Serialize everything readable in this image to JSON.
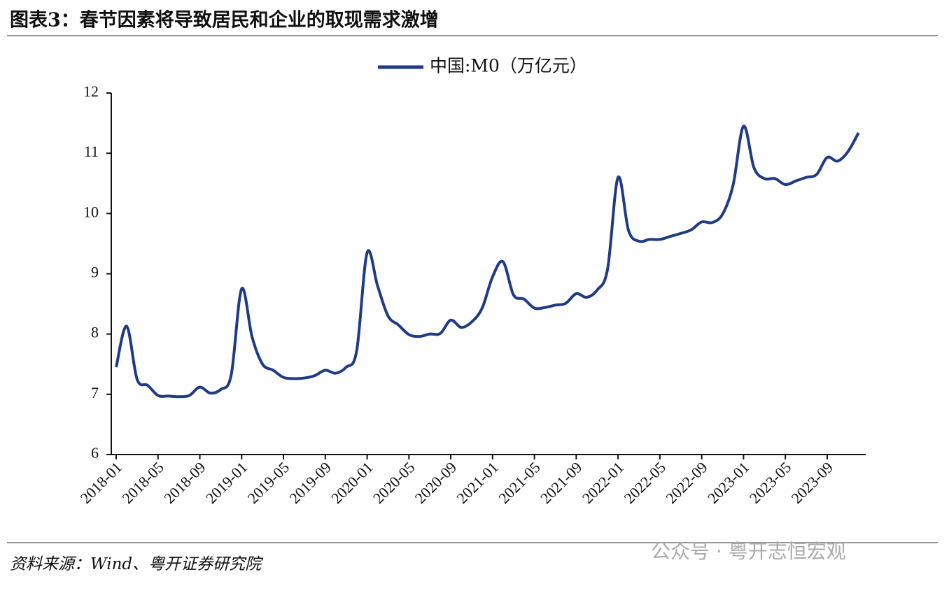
{
  "chart_data": {
    "type": "line",
    "title": "图表3：春节因素将导致居民和企业的取现需求激增",
    "source": "资料来源：Wind、粤开证券研究院",
    "watermark": "公众号 · 粤开志恒宏观",
    "categories": [
      "2018-01",
      null,
      null,
      null,
      "2018-05",
      null,
      null,
      null,
      "2018-09",
      null,
      null,
      null,
      "2019-01",
      null,
      null,
      null,
      "2019-05",
      null,
      null,
      null,
      "2019-09",
      null,
      null,
      null,
      "2020-01",
      null,
      null,
      null,
      "2020-05",
      null,
      null,
      null,
      "2020-09",
      null,
      null,
      null,
      "2021-01",
      null,
      null,
      null,
      "2021-05",
      null,
      null,
      null,
      "2021-09",
      null,
      null,
      null,
      "2022-01",
      null,
      null,
      null,
      "2022-05",
      null,
      null,
      null,
      "2022-09",
      null,
      null,
      null,
      "2023-01",
      null,
      null,
      null,
      "2023-05",
      null,
      null,
      null,
      "2023-09",
      null,
      null,
      null
    ],
    "series": [
      {
        "name": "中国:M0（万亿元）",
        "color": "#1f3b85",
        "values": [
          7.45,
          8.13,
          7.25,
          7.15,
          6.98,
          6.97,
          6.96,
          6.98,
          7.12,
          7.02,
          7.08,
          7.32,
          8.75,
          7.95,
          7.5,
          7.4,
          7.28,
          7.26,
          7.27,
          7.31,
          7.4,
          7.35,
          7.45,
          7.72,
          9.35,
          8.8,
          8.3,
          8.15,
          7.99,
          7.96,
          8.0,
          8.01,
          8.23,
          8.11,
          8.2,
          8.43,
          8.95,
          9.2,
          8.65,
          8.58,
          8.43,
          8.44,
          8.48,
          8.51,
          8.67,
          8.61,
          8.73,
          9.08,
          10.6,
          9.72,
          9.54,
          9.57,
          9.57,
          9.62,
          9.67,
          9.73,
          9.86,
          9.85,
          9.99,
          10.47,
          11.45,
          10.76,
          10.58,
          10.58,
          10.48,
          10.54,
          10.6,
          10.65,
          10.93,
          10.87,
          11.03,
          11.34
        ]
      }
    ],
    "ylim": [
      6,
      12
    ],
    "yticks": [
      6,
      7,
      8,
      9,
      10,
      11,
      12
    ],
    "grid": false,
    "legend": "top"
  }
}
